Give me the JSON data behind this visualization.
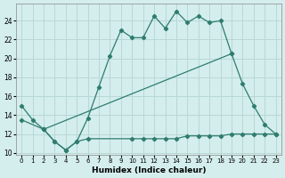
{
  "bg_color": "#d4eeed",
  "grid_color": "#b8d8d5",
  "line_color": "#2e7d6e",
  "xlabel": "Humidex (Indice chaleur)",
  "xlim": [
    -0.5,
    23.5
  ],
  "ylim": [
    9.8,
    25.8
  ],
  "yticks": [
    10,
    12,
    14,
    16,
    18,
    20,
    22,
    24
  ],
  "xticks": [
    0,
    1,
    2,
    3,
    4,
    5,
    6,
    7,
    8,
    9,
    10,
    11,
    12,
    13,
    14,
    15,
    16,
    17,
    18,
    19,
    20,
    21,
    22,
    23
  ],
  "lines": [
    {
      "x": [
        0,
        1,
        2,
        3,
        4,
        5,
        6,
        7,
        8,
        9,
        10,
        11,
        12,
        13,
        14,
        15,
        16,
        17,
        18,
        19
      ],
      "y": [
        15.0,
        13.5,
        12.5,
        11.2,
        10.3,
        11.2,
        13.7,
        17.0,
        20.3,
        23.0,
        22.2,
        22.2,
        24.5,
        23.2,
        25.0,
        23.8,
        24.5,
        23.8,
        24.0,
        20.5
      ]
    },
    {
      "x": [
        0,
        2,
        19,
        20,
        21,
        22,
        23
      ],
      "y": [
        13.5,
        12.5,
        20.5,
        17.3,
        15.0,
        13.0,
        12.0
      ]
    },
    {
      "x": [
        2,
        3,
        4,
        5,
        6,
        10,
        11,
        12,
        13,
        14,
        15,
        16,
        17,
        18,
        19,
        20,
        21,
        22,
        23
      ],
      "y": [
        12.5,
        11.2,
        10.3,
        11.2,
        11.5,
        11.5,
        11.5,
        11.5,
        11.5,
        11.5,
        11.8,
        11.8,
        11.8,
        11.8,
        12.0,
        12.0,
        12.0,
        12.0,
        12.0
      ]
    }
  ]
}
